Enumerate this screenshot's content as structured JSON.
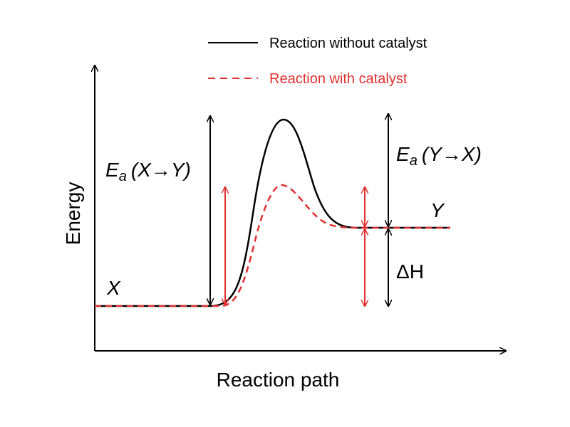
{
  "legend": {
    "items": [
      {
        "label": "Reaction without catalyst",
        "color": "#000000",
        "style": "solid"
      },
      {
        "label": "Reaction with catalyst",
        "color": "#e03030",
        "style": "dashed"
      }
    ]
  },
  "axes": {
    "y_label": "Energy",
    "x_label": "Reaction path"
  },
  "states": {
    "start": "X",
    "end": "Y"
  },
  "annotations": {
    "ea_forward": {
      "symbol": "E",
      "subscript": "a",
      "text": "(X→Y)"
    },
    "ea_reverse": {
      "symbol": "E",
      "subscript": "a",
      "text": "(Y→X)"
    },
    "delta_h": "ΔH"
  }
}
